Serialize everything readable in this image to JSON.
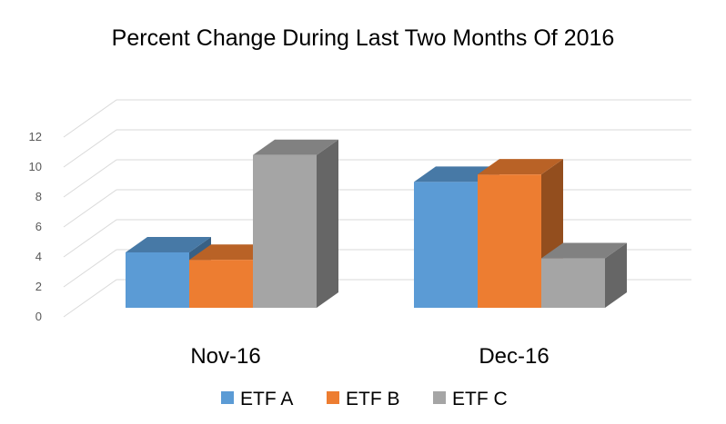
{
  "chart_data": {
    "type": "bar",
    "style": "3d-clustered-column",
    "title": "Percent Change During Last Two Months Of 2016",
    "xlabel": "",
    "ylabel": "",
    "categories": [
      "Nov-16",
      "Dec-16"
    ],
    "series": [
      {
        "name": "ETF A",
        "values": [
          3.7,
          8.4
        ],
        "color": "#5B9BD5"
      },
      {
        "name": "ETF B",
        "values": [
          3.2,
          8.9
        ],
        "color": "#ED7D31"
      },
      {
        "name": "ETF C",
        "values": [
          10.2,
          3.3
        ],
        "color": "#A5A5A5"
      }
    ],
    "ylim": [
      0,
      12
    ],
    "yticks": [
      "0",
      "2",
      "4",
      "6",
      "8",
      "10",
      "12"
    ],
    "grid": true,
    "legend": "bottom"
  }
}
